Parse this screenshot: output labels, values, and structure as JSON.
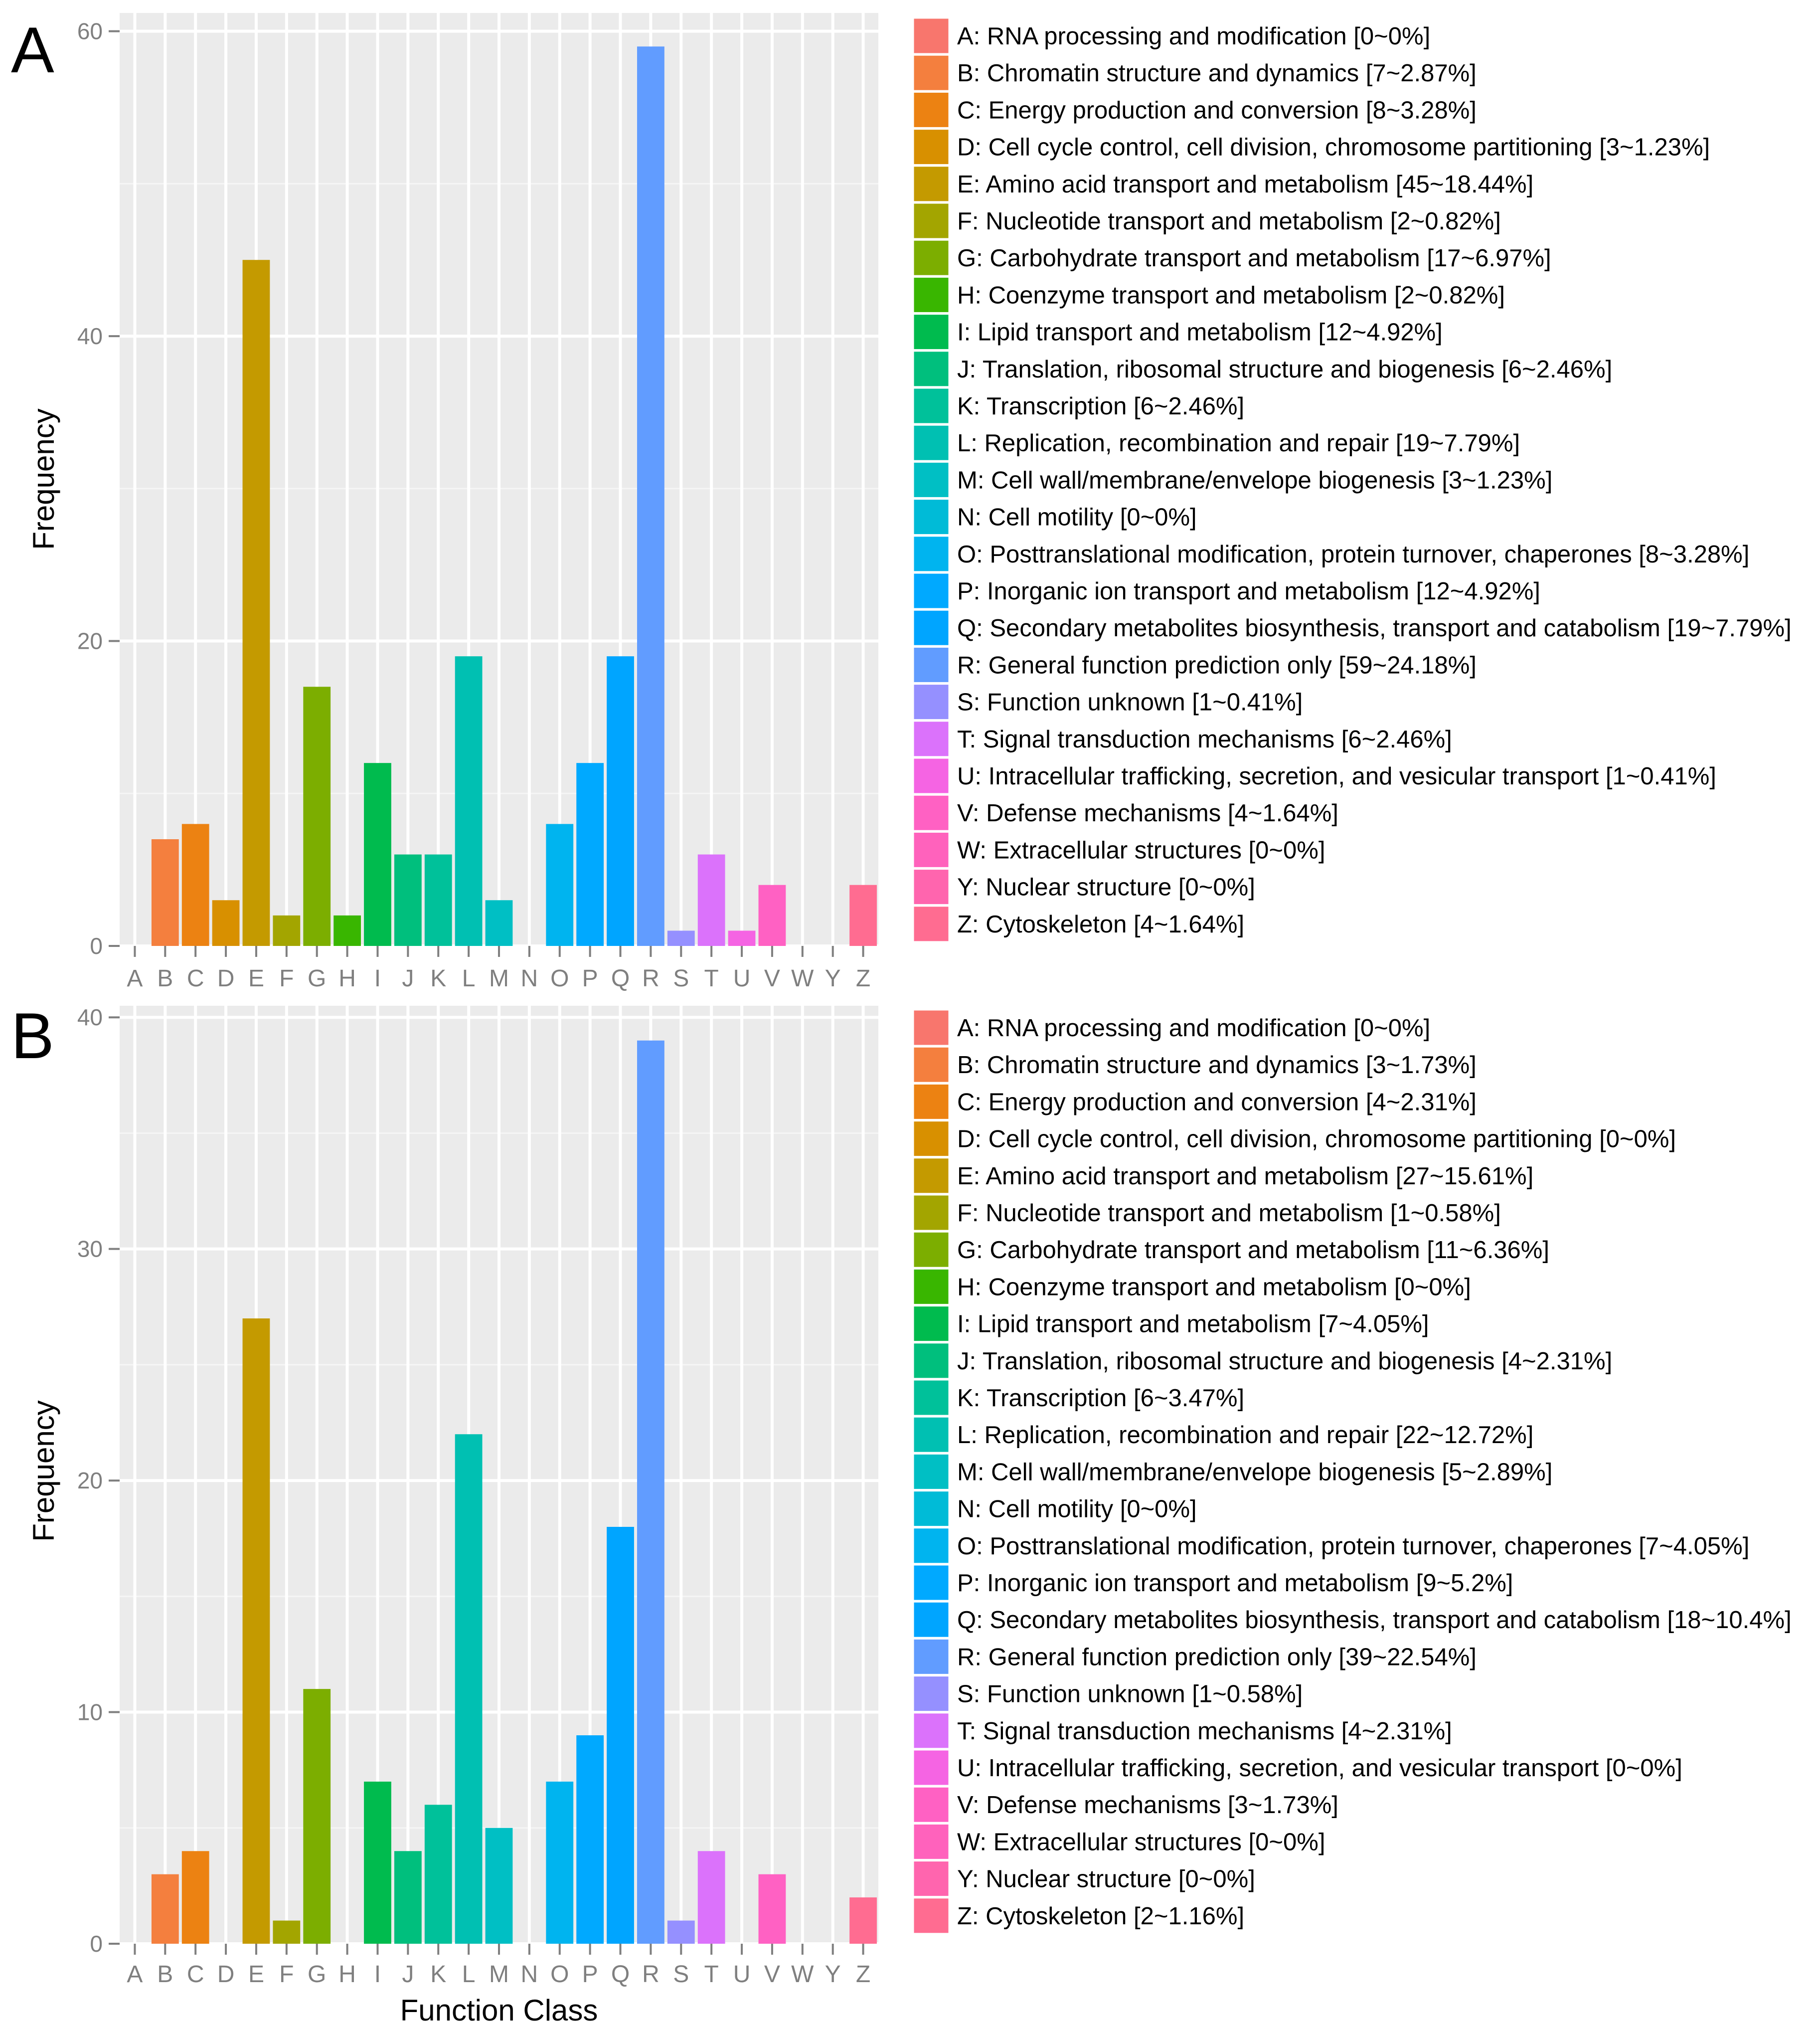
{
  "chart_data": [
    {
      "type": "bar",
      "panel_label": "A",
      "xlabel": "",
      "ylabel": "Frequency",
      "ylim": [
        0,
        61.2
      ],
      "yticks": [
        0,
        20,
        40,
        60
      ],
      "grid": true,
      "legend_position": "right",
      "categories": [
        "A",
        "B",
        "C",
        "D",
        "E",
        "F",
        "G",
        "H",
        "I",
        "J",
        "K",
        "L",
        "M",
        "N",
        "O",
        "P",
        "Q",
        "R",
        "S",
        "T",
        "U",
        "V",
        "W",
        "Y",
        "Z"
      ],
      "values": [
        0,
        7,
        8,
        3,
        45,
        2,
        17,
        2,
        12,
        6,
        6,
        19,
        3,
        0,
        8,
        12,
        19,
        59,
        1,
        6,
        1,
        4,
        0,
        0,
        4
      ],
      "legend": [
        "A: RNA processing and modification [0~0%]",
        "B: Chromatin structure and dynamics [7~2.87%]",
        "C: Energy production and conversion [8~3.28%]",
        "D: Cell cycle control, cell division, chromosome partitioning [3~1.23%]",
        "E: Amino acid transport and metabolism [45~18.44%]",
        "F: Nucleotide transport and metabolism [2~0.82%]",
        "G: Carbohydrate transport and metabolism [17~6.97%]",
        "H: Coenzyme transport and metabolism [2~0.82%]",
        "I: Lipid transport and metabolism [12~4.92%]",
        "J: Translation, ribosomal structure and biogenesis [6~2.46%]",
        "K: Transcription [6~2.46%]",
        "L: Replication, recombination and repair [19~7.79%]",
        "M: Cell wall/membrane/envelope biogenesis [3~1.23%]",
        "N: Cell motility [0~0%]",
        "O: Posttranslational modification, protein turnover, chaperones [8~3.28%]",
        "P: Inorganic ion transport and metabolism [12~4.92%]",
        "Q: Secondary metabolites biosynthesis, transport and catabolism [19~7.79%]",
        "R: General function prediction only [59~24.18%]",
        "S: Function unknown [1~0.41%]",
        "T: Signal transduction mechanisms [6~2.46%]",
        "U: Intracellular trafficking, secretion, and vesicular transport [1~0.41%]",
        "V: Defense mechanisms [4~1.64%]",
        "W: Extracellular structures [0~0%]",
        "Y: Nuclear structure [0~0%]",
        "Z: Cytoskeleton [4~1.64%]"
      ]
    },
    {
      "type": "bar",
      "panel_label": "B",
      "xlabel": "Function Class",
      "ylabel": "Frequency",
      "ylim": [
        0,
        40.5
      ],
      "yticks": [
        0,
        10,
        20,
        30,
        40
      ],
      "grid": true,
      "legend_position": "right",
      "categories": [
        "A",
        "B",
        "C",
        "D",
        "E",
        "F",
        "G",
        "H",
        "I",
        "J",
        "K",
        "L",
        "M",
        "N",
        "O",
        "P",
        "Q",
        "R",
        "S",
        "T",
        "U",
        "V",
        "W",
        "Y",
        "Z"
      ],
      "values": [
        0,
        3,
        4,
        0,
        27,
        1,
        11,
        0,
        7,
        4,
        6,
        22,
        5,
        0,
        7,
        9,
        18,
        39,
        1,
        4,
        0,
        3,
        0,
        0,
        2
      ],
      "legend": [
        "A: RNA processing and modification [0~0%]",
        "B: Chromatin structure and dynamics [3~1.73%]",
        "C: Energy production and conversion [4~2.31%]",
        "D: Cell cycle control, cell division, chromosome partitioning [0~0%]",
        "E: Amino acid transport and metabolism [27~15.61%]",
        "F: Nucleotide transport and metabolism [1~0.58%]",
        "G: Carbohydrate transport and metabolism [11~6.36%]",
        "H: Coenzyme transport and metabolism [0~0%]",
        "I: Lipid transport and metabolism [7~4.05%]",
        "J: Translation, ribosomal structure and biogenesis [4~2.31%]",
        "K: Transcription [6~3.47%]",
        "L: Replication, recombination and repair [22~12.72%]",
        "M: Cell wall/membrane/envelope biogenesis [5~2.89%]",
        "N: Cell motility [0~0%]",
        "O: Posttranslational modification, protein turnover, chaperones [7~4.05%]",
        "P: Inorganic ion transport and metabolism [9~5.2%]",
        "Q: Secondary metabolites biosynthesis, transport and catabolism [18~10.4%]",
        "R: General function prediction only [39~22.54%]",
        "S: Function unknown [1~0.58%]",
        "T: Signal transduction mechanisms [4~2.31%]",
        "U: Intracellular trafficking, secretion, and vesicular transport [0~0%]",
        "V: Defense mechanisms [3~1.73%]",
        "W: Extracellular structures [0~0%]",
        "Y: Nuclear structure [0~0%]",
        "Z: Cytoskeleton [2~1.16%]"
      ]
    }
  ],
  "colors": [
    "#F8766D",
    "#F47F3E",
    "#EC8212",
    "#D89000",
    "#C49A00",
    "#A3A500",
    "#7CAE00",
    "#39B600",
    "#00BB4E",
    "#00BF7D",
    "#00C19A",
    "#00C0B2",
    "#00BFC4",
    "#00BBD7",
    "#00B4EF",
    "#00A9FF",
    "#00A5FF",
    "#619CFF",
    "#9590FF",
    "#DB72FB",
    "#F564E3",
    "#FF61C3",
    "#FF62BC",
    "#FF65AE",
    "#FF6C91"
  ]
}
